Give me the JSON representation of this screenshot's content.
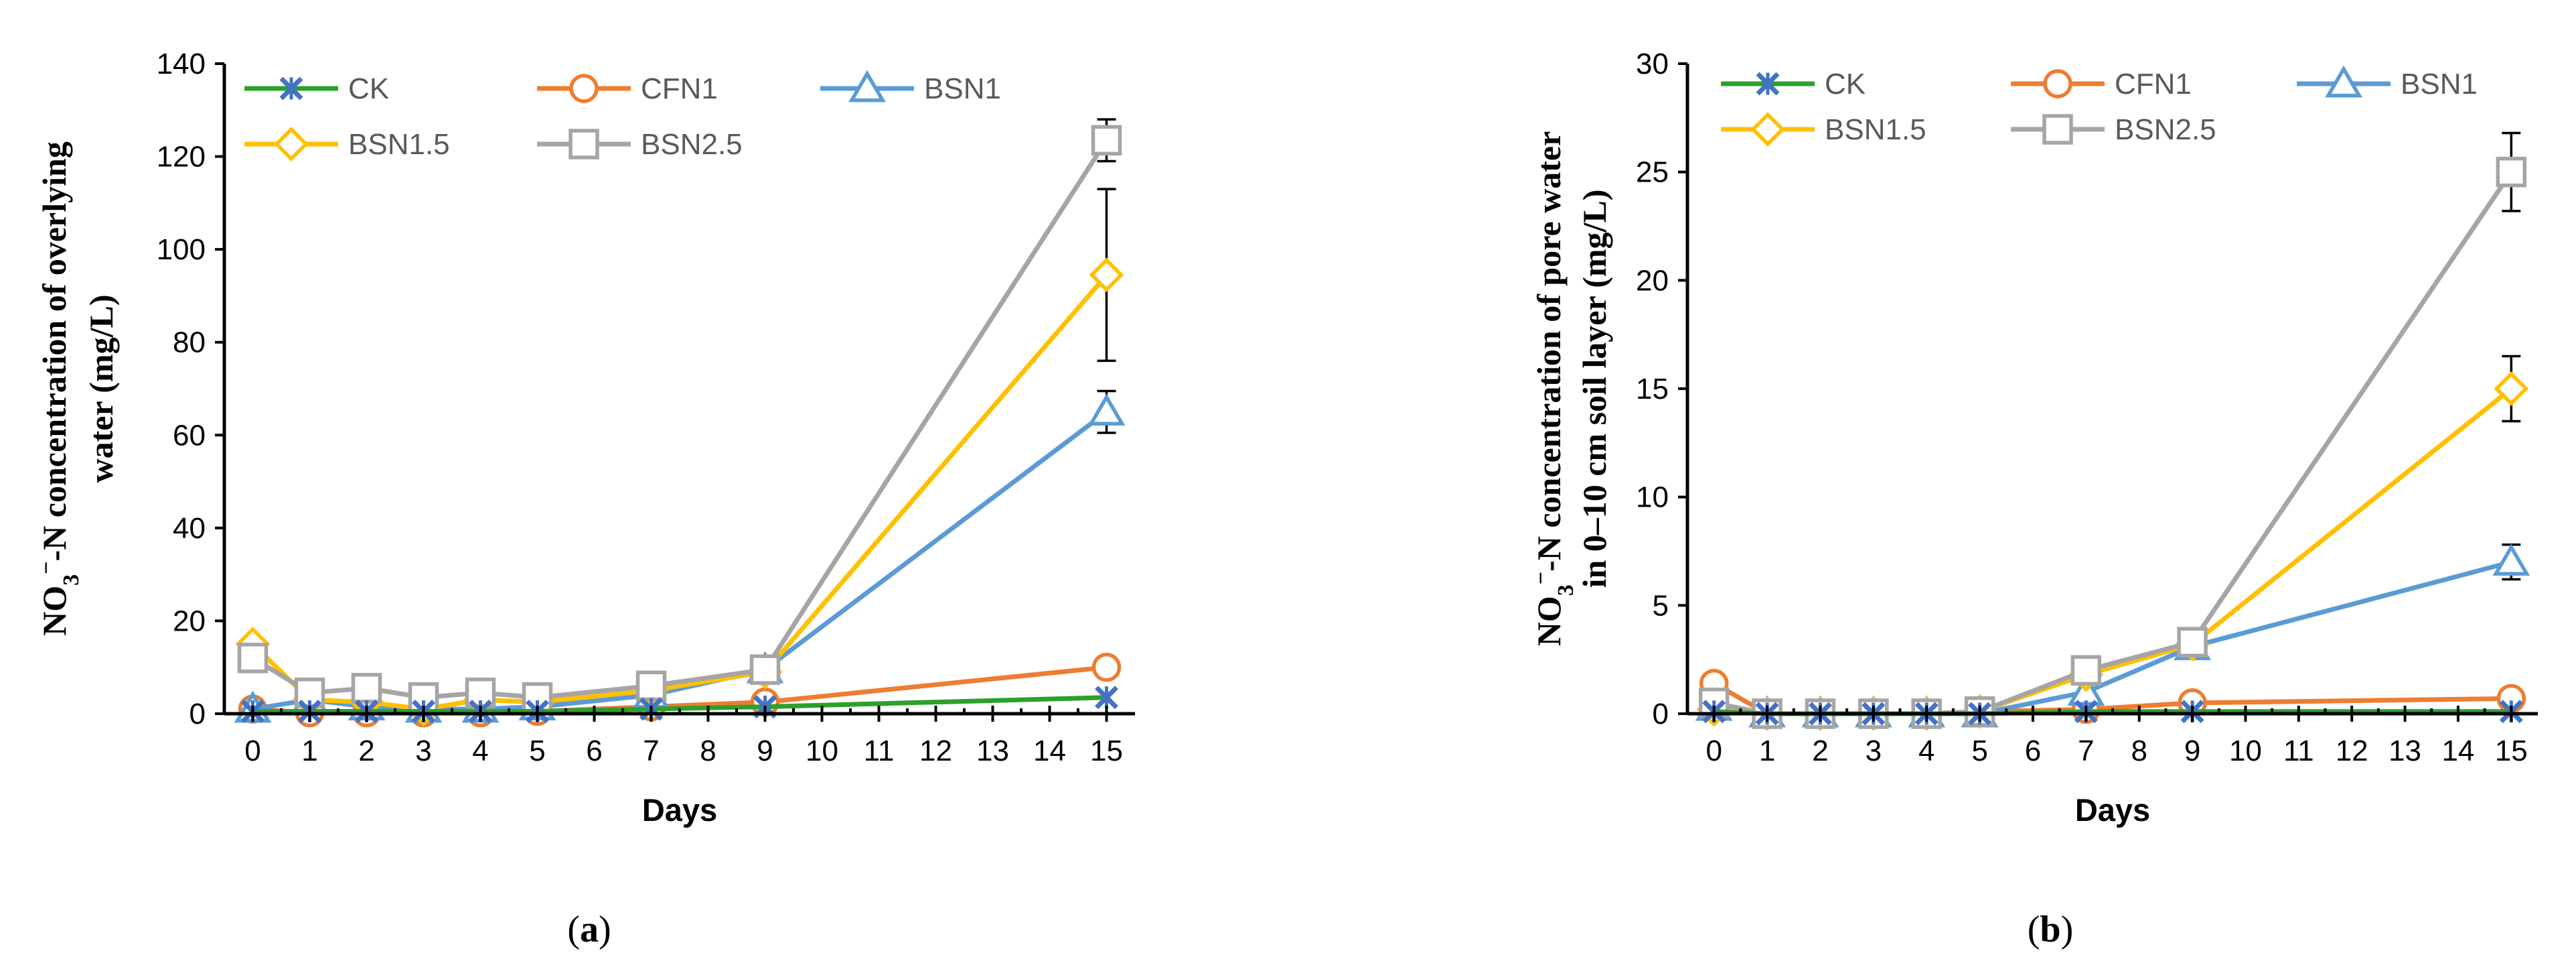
{
  "colors": {
    "CK_line": "#2CA02C",
    "CK_marker": "#4472C4",
    "CFN1": "#ED7D31",
    "BSN1": "#5B9BD5",
    "BSN1.5": "#FFC000",
    "BSN2.5": "#A5A5A5"
  },
  "chart_data": [
    {
      "type": "line",
      "caption": "(a)",
      "caption_letter": "a",
      "xlabel": "Days",
      "ylabel_line1": "NO",
      "ylabel_sub": "3",
      "ylabel_sup": "−",
      "ylabel_rest": "-N concentration of overlying",
      "ylabel_line2": "water (mg/L)",
      "ylim": [
        0,
        140
      ],
      "yticks": [
        0,
        20,
        40,
        60,
        80,
        100,
        120,
        140
      ],
      "xlim": [
        -0.5,
        15.5
      ],
      "xticks": [
        0,
        1,
        2,
        3,
        4,
        5,
        6,
        7,
        8,
        9,
        10,
        11,
        12,
        13,
        14,
        15
      ],
      "series": [
        {
          "name": "CK",
          "x": [
            0,
            1,
            2,
            3,
            4,
            5,
            7,
            9,
            15
          ],
          "values": [
            0.5,
            0.5,
            0.5,
            0.5,
            0.5,
            0.5,
            1.0,
            1.5,
            3.5
          ],
          "err": [
            0,
            0,
            0,
            0,
            0,
            0,
            0,
            0,
            0
          ]
        },
        {
          "name": "CFN1",
          "x": [
            0,
            1,
            2,
            3,
            4,
            5,
            7,
            9,
            15
          ],
          "values": [
            1.0,
            0.2,
            0.2,
            0.2,
            0.2,
            0.5,
            1.5,
            2.5,
            10.0
          ],
          "err": [
            0,
            0,
            0,
            0,
            0,
            0,
            0,
            0,
            0
          ]
        },
        {
          "name": "BSN1",
          "x": [
            0,
            1,
            2,
            3,
            4,
            5,
            7,
            9,
            15
          ],
          "values": [
            1.0,
            3.0,
            1.5,
            1.0,
            1.0,
            1.5,
            4.0,
            9.5,
            65.0
          ],
          "err": [
            0,
            0,
            0,
            0,
            0,
            0,
            0,
            0,
            4.5
          ]
        },
        {
          "name": "BSN1.5",
          "x": [
            0,
            1,
            2,
            3,
            4,
            5,
            7,
            9,
            15
          ],
          "values": [
            15.0,
            3.0,
            2.5,
            1.0,
            3.0,
            2.5,
            5.0,
            9.0,
            94.5
          ],
          "err": [
            0,
            0,
            0,
            0,
            0,
            0,
            0,
            0,
            18.5
          ]
        },
        {
          "name": "BSN2.5",
          "x": [
            0,
            1,
            2,
            3,
            4,
            5,
            7,
            9,
            15
          ],
          "values": [
            12.0,
            4.5,
            5.5,
            3.5,
            4.5,
            3.5,
            6.0,
            9.5,
            123.5
          ],
          "err": [
            0,
            0,
            0,
            0,
            0,
            0,
            0,
            0,
            4.5
          ]
        }
      ]
    },
    {
      "type": "line",
      "caption": "(b)",
      "caption_letter": "b",
      "xlabel": "Days",
      "ylabel_line1": "NO",
      "ylabel_sub": "3",
      "ylabel_sup": "−",
      "ylabel_rest": "-N concentration of pore water",
      "ylabel_line2": "in 0–10 cm soil layer (mg/L)",
      "ylim": [
        0,
        30
      ],
      "yticks": [
        0,
        5,
        10,
        15,
        20,
        25,
        30
      ],
      "xlim": [
        -0.5,
        15.5
      ],
      "xticks": [
        0,
        1,
        2,
        3,
        4,
        5,
        6,
        7,
        8,
        9,
        10,
        11,
        12,
        13,
        14,
        15
      ],
      "series": [
        {
          "name": "CK",
          "x": [
            0,
            1,
            2,
            3,
            4,
            5,
            7,
            9,
            15
          ],
          "values": [
            0.1,
            0.0,
            0.0,
            0.0,
            0.0,
            0.0,
            0.1,
            0.1,
            0.1
          ],
          "err": [
            0,
            0,
            0,
            0,
            0,
            0,
            0,
            0,
            0
          ]
        },
        {
          "name": "CFN1",
          "x": [
            0,
            1,
            2,
            3,
            4,
            5,
            7,
            9,
            15
          ],
          "values": [
            1.4,
            0.0,
            0.0,
            0.0,
            0.0,
            0.1,
            0.2,
            0.5,
            0.7
          ],
          "err": [
            0,
            0,
            0,
            0,
            0,
            0,
            0,
            0,
            0
          ]
        },
        {
          "name": "BSN1",
          "x": [
            0,
            1,
            2,
            3,
            4,
            5,
            7,
            9,
            15
          ],
          "values": [
            0.3,
            0.0,
            0.0,
            0.0,
            0.0,
            0.0,
            1.0,
            3.1,
            7.0
          ],
          "err": [
            0,
            0,
            0,
            0,
            0,
            0,
            0,
            0,
            0.8
          ]
        },
        {
          "name": "BSN1.5",
          "x": [
            0,
            1,
            2,
            3,
            4,
            5,
            7,
            9,
            15
          ],
          "values": [
            0.2,
            0.0,
            0.0,
            0.0,
            0.0,
            0.1,
            1.8,
            3.2,
            15.0
          ],
          "err": [
            0,
            0,
            0,
            0,
            0,
            0,
            0,
            0,
            1.5
          ]
        },
        {
          "name": "BSN2.5",
          "x": [
            0,
            1,
            2,
            3,
            4,
            5,
            7,
            9,
            15
          ],
          "values": [
            0.5,
            0.0,
            0.0,
            0.0,
            0.0,
            0.1,
            2.0,
            3.3,
            25.0
          ],
          "err": [
            0,
            0,
            0,
            0,
            0,
            0,
            0,
            0,
            1.8
          ]
        }
      ]
    }
  ]
}
